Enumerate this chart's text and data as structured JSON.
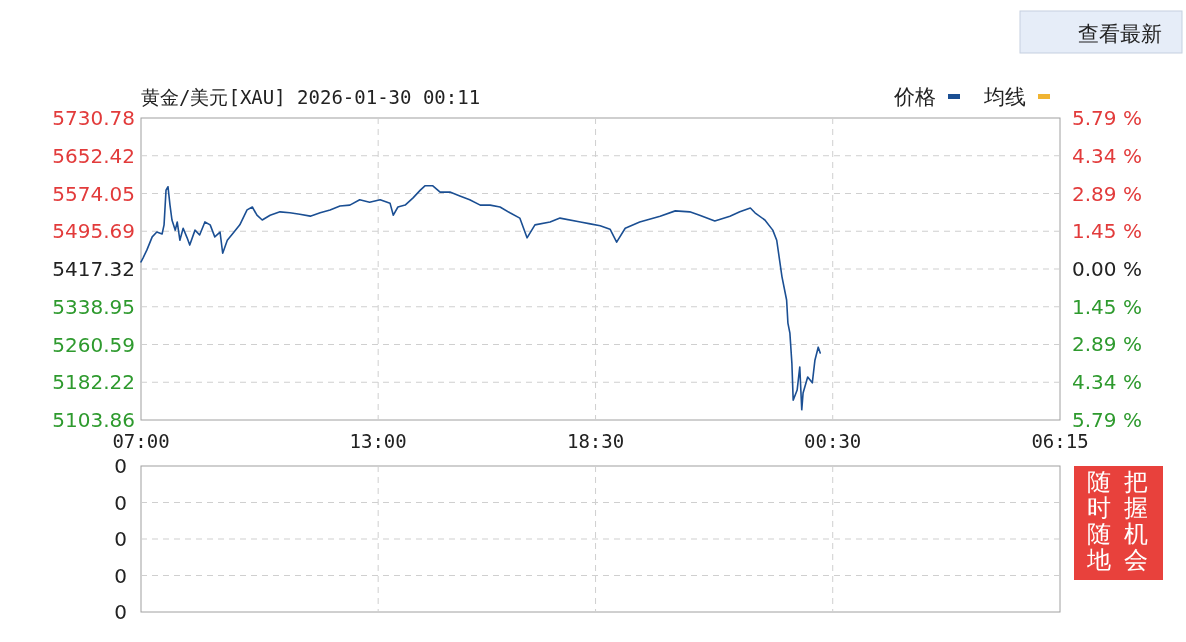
{
  "chart_data": [
    {
      "type": "line",
      "title": "黄金/美元[XAU] 2026-01-30 00:11",
      "legend": "top right",
      "grid": true,
      "xlim": [
        "2026-01-29T07:00",
        "2026-01-30T06:15"
      ],
      "xticks": [
        {
          "value": "2026-01-29T07:00",
          "label": "07:00"
        },
        {
          "value": "2026-01-29T13:00",
          "label": "13:00"
        },
        {
          "value": "2026-01-29T18:30",
          "label": "18:30"
        },
        {
          "value": "2026-01-30T00:30",
          "label": "00:30"
        },
        {
          "value": "2026-01-30T06:15",
          "label": "06:15"
        }
      ],
      "ylim": [
        5103.86,
        5730.78
      ],
      "yticks": [
        5103.86,
        5182.22,
        5260.59,
        5338.95,
        5417.32,
        5495.69,
        5574.05,
        5652.42,
        5730.78
      ],
      "y2lim": [
        -5.79,
        5.79
      ],
      "y2ticks": [
        {
          "value": -5.79,
          "label": "5.79 %"
        },
        {
          "value": -4.34,
          "label": "4.34 %"
        },
        {
          "value": -2.89,
          "label": "2.89 %"
        },
        {
          "value": -1.45,
          "label": "1.45 %"
        },
        {
          "value": 0,
          "label": "0.00 %"
        },
        {
          "value": 1.45,
          "label": "1.45 %"
        },
        {
          "value": 2.89,
          "label": "2.89 %"
        },
        {
          "value": 4.34,
          "label": "4.34 %"
        },
        {
          "value": 5.79,
          "label": "5.79 %"
        }
      ],
      "annotations": [
        "查看最新",
        "随时随地",
        "把握机会"
      ],
      "series": [
        {
          "name": "价格",
          "color": "#1b4f93",
          "x": [
            "2026-01-29T07:00",
            "2026-01-29T07:03",
            "2026-01-29T07:09",
            "2026-01-29T07:17",
            "2026-01-29T07:24",
            "2026-01-29T07:32",
            "2026-01-29T07:35",
            "2026-01-29T07:38",
            "2026-01-29T07:41",
            "2026-01-29T07:44",
            "2026-01-29T07:47",
            "2026-01-29T07:52",
            "2026-01-29T07:55",
            "2026-01-29T07:59",
            "2026-01-29T08:04",
            "2026-01-29T08:10",
            "2026-01-29T08:14",
            "2026-01-29T08:22",
            "2026-01-29T08:29",
            "2026-01-29T08:37",
            "2026-01-29T08:45",
            "2026-01-29T08:52",
            "2026-01-29T09:00",
            "2026-01-29T09:04",
            "2026-01-29T09:11",
            "2026-01-29T09:20",
            "2026-01-29T09:30",
            "2026-01-29T09:41",
            "2026-01-29T09:49",
            "2026-01-29T09:56",
            "2026-01-29T10:04",
            "2026-01-29T10:16",
            "2026-01-29T10:31",
            "2026-01-29T10:46",
            "2026-01-29T11:01",
            "2026-01-29T11:17",
            "2026-01-29T11:32",
            "2026-01-29T11:47",
            "2026-01-29T12:02",
            "2026-01-29T12:17",
            "2026-01-29T12:32",
            "2026-01-29T12:47",
            "2026-01-29T13:03",
            "2026-01-29T13:18",
            "2026-01-29T13:23",
            "2026-01-29T13:30",
            "2026-01-29T13:41",
            "2026-01-29T13:53",
            "2026-01-29T14:04",
            "2026-01-29T14:11",
            "2026-01-29T14:23",
            "2026-01-29T14:34",
            "2026-01-29T14:49",
            "2026-01-29T15:04",
            "2026-01-29T15:19",
            "2026-01-29T15:35",
            "2026-01-29T15:50",
            "2026-01-29T16:05",
            "2026-01-29T16:20",
            "2026-01-29T16:35",
            "2026-01-29T16:46",
            "2026-01-29T16:58",
            "2026-01-29T17:21",
            "2026-01-29T17:36",
            "2026-01-29T18:07",
            "2026-01-29T18:22",
            "2026-01-29T18:37",
            "2026-01-29T18:52",
            "2026-01-29T19:02",
            "2026-01-29T19:15",
            "2026-01-29T19:37",
            "2026-01-29T20:08",
            "2026-01-29T20:31",
            "2026-01-29T20:53",
            "2026-01-29T21:08",
            "2026-01-29T21:31",
            "2026-01-29T21:54",
            "2026-01-29T22:09",
            "2026-01-29T22:25",
            "2026-01-29T22:32",
            "2026-01-29T22:47",
            "2026-01-29T22:59",
            "2026-01-29T23:05",
            "2026-01-29T23:13",
            "2026-01-29T23:20",
            "2026-01-29T23:22",
            "2026-01-29T23:25",
            "2026-01-29T23:28",
            "2026-01-29T23:30",
            "2026-01-29T23:36",
            "2026-01-29T23:40",
            "2026-01-29T23:43",
            "2026-01-29T23:45",
            "2026-01-29T23:52",
            "2026-01-29T23:59",
            "2026-01-30T00:03",
            "2026-01-30T00:08",
            "2026-01-30T00:11"
          ],
          "values": [
            5432,
            5440,
            5457,
            5484,
            5494,
            5490,
            5509,
            5581,
            5588,
            5550,
            5519,
            5498,
            5515,
            5477,
            5502,
            5482,
            5467,
            5498,
            5488,
            5515,
            5509,
            5484,
            5494,
            5450,
            5477,
            5492,
            5509,
            5540,
            5546,
            5529,
            5519,
            5529,
            5536,
            5534,
            5531,
            5527,
            5534,
            5540,
            5548,
            5550,
            5561,
            5556,
            5561,
            5554,
            5529,
            5546,
            5550,
            5565,
            5581,
            5590,
            5590,
            5577,
            5577,
            5569,
            5561,
            5550,
            5550,
            5546,
            5534,
            5523,
            5482,
            5509,
            5515,
            5523,
            5515,
            5511,
            5507,
            5500,
            5473,
            5502,
            5515,
            5527,
            5538,
            5536,
            5529,
            5517,
            5527,
            5536,
            5544,
            5534,
            5519,
            5498,
            5477,
            5401,
            5353,
            5305,
            5284,
            5222,
            5145,
            5166,
            5214,
            5125,
            5160,
            5193,
            5181,
            5228,
            5255,
            5243
          ]
        },
        {
          "name": "均线",
          "color": "#f0b432"
        }
      ]
    },
    {
      "type": "other",
      "annotations": [
        "0",
        "0",
        "0",
        "0",
        "0"
      ]
    }
  ]
}
